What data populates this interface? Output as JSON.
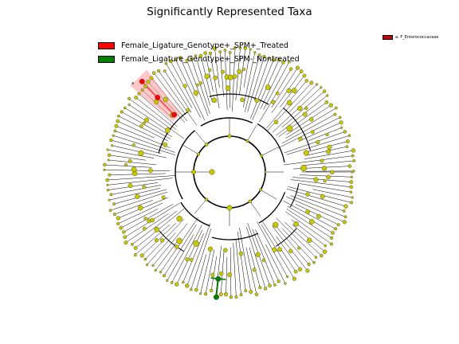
{
  "title": "Significantly Represented Taxa",
  "legend": [
    {
      "label": "Female_Ligature_Genotype+_SPM+_Treated",
      "color": "#ff0000"
    },
    {
      "label": "Female_Ligature_Genotype+_SPM-_Nontreated",
      "color": "#008000"
    }
  ],
  "clade_legend": [
    {
      "label": "a: F_Enterococcaceae",
      "color": "#cc0000"
    }
  ],
  "clade_letter": "a",
  "node_color": "#c8c800",
  "highlight_colors": {
    "treated": "#ff0000",
    "nontreated": "#008000",
    "clade_shade": "#ff9999"
  }
}
